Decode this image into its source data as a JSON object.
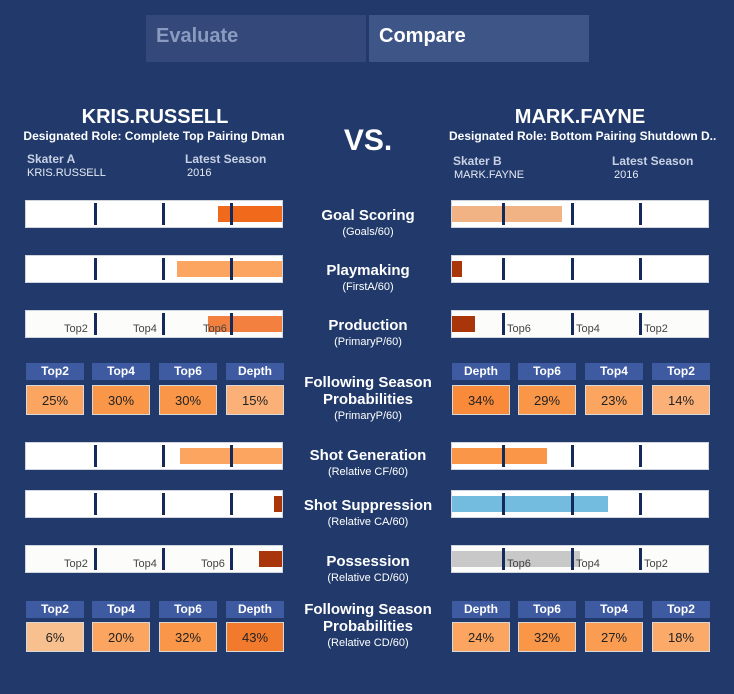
{
  "tabs": {
    "evaluate": "Evaluate",
    "compare": "Compare"
  },
  "vs_label": "VS.",
  "skater_a": {
    "name": "KRIS.RUSSELL",
    "role": "Designated Role: Complete Top Pairing Dman",
    "skater_label": "Skater A",
    "skater_value": "KRIS.RUSSELL",
    "season_label": "Latest Season",
    "season_value": "2016"
  },
  "skater_b": {
    "name": "MARK.FAYNE",
    "role": "Designated Role: Bottom Pairing Shutdown D..",
    "skater_label": "Skater B",
    "skater_value": "MARK.FAYNE",
    "season_label": "Latest Season",
    "season_value": "2016"
  },
  "tiers": {
    "top2": "Top2",
    "top4": "Top4",
    "top6": "Top6",
    "depth": "Depth"
  },
  "metrics": {
    "goal_scoring": {
      "title": "Goal Scoring",
      "sub": "(Goals/60)"
    },
    "playmaking": {
      "title": "Playmaking",
      "sub": "(FirstA/60)"
    },
    "production": {
      "title": "Production",
      "sub": "(PrimaryP/60)"
    },
    "prob1": {
      "title1": "Following Season",
      "title2": "Probabilities",
      "sub": "(PrimaryP/60)"
    },
    "shot_generation": {
      "title": "Shot Generation",
      "sub": "(Relative CF/60)"
    },
    "shot_suppression": {
      "title": "Shot Suppression",
      "sub": "(Relative CA/60)"
    },
    "possession": {
      "title": "Possession",
      "sub": "(Relative CD/60)"
    },
    "prob2": {
      "title1": "Following Season",
      "title2": "Probabilities",
      "sub": "(Relative CD/60)"
    }
  },
  "probabilities": {
    "a_primaryp": {
      "top2": "25%",
      "top4": "30%",
      "top6": "30%",
      "depth": "15%"
    },
    "b_primaryp": {
      "depth": "34%",
      "top6": "29%",
      "top4": "23%",
      "top2": "14%"
    },
    "a_cd": {
      "top2": "6%",
      "top4": "20%",
      "top6": "32%",
      "depth": "43%"
    },
    "b_cd": {
      "depth": "24%",
      "top6": "32%",
      "top4": "27%",
      "top2": "18%"
    }
  },
  "bar_levels": {
    "a_goal_scoring": 0.25,
    "a_playmaking": 0.41,
    "a_production": 0.29,
    "a_shot_generation": 0.4,
    "a_shot_suppression": 0.03,
    "a_possession": 0.09,
    "b_goal_scoring": 0.43,
    "b_playmaking": 0.04,
    "b_production": 0.09,
    "b_shot_generation": 0.37,
    "b_shot_suppression": 0.61,
    "b_possession": 0.5
  },
  "colors": {
    "background": "#213a6b",
    "orange_dark": "#f16a1c",
    "orange_light": "#fba560",
    "peach": "#f2b384",
    "rust": "#a9360b",
    "blue": "#73bbdf",
    "gray": "#c8c8c8",
    "divider": "#152a5c"
  }
}
